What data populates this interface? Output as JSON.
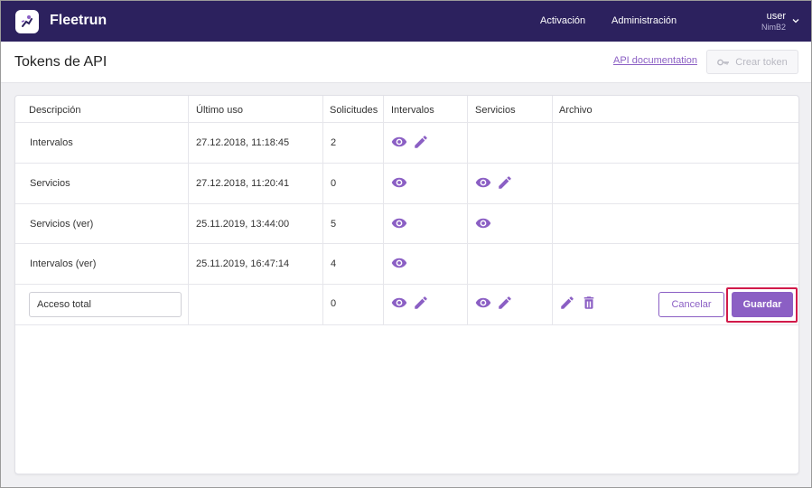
{
  "app": {
    "brand": "Fleetrun",
    "nav": [
      "Activación",
      "Administración"
    ],
    "user": {
      "name": "user",
      "org": "NimB2"
    }
  },
  "page": {
    "title": "Tokens de API",
    "api_doc_link": "API documentation",
    "create_token_label": "Crear token"
  },
  "table": {
    "columns": [
      "Descripción",
      "Último uso",
      "Solicitudes",
      "Intervalos",
      "Servicios",
      "Archivo"
    ],
    "rows": [
      {
        "description": "Intervalos",
        "last_use": "27.12.2018, 11:18:45",
        "requests": "2",
        "intervals": [
          "view",
          "edit"
        ],
        "services": [],
        "archive": []
      },
      {
        "description": "Servicios",
        "last_use": "27.12.2018, 11:20:41",
        "requests": "0",
        "intervals": [
          "view"
        ],
        "services": [
          "view",
          "edit"
        ],
        "archive": []
      },
      {
        "description": "Servicios (ver)",
        "last_use": "25.11.2019, 13:44:00",
        "requests": "5",
        "intervals": [
          "view"
        ],
        "services": [
          "view"
        ],
        "archive": []
      },
      {
        "description": "Intervalos (ver)",
        "last_use": "25.11.2019, 16:47:14",
        "requests": "4",
        "intervals": [
          "view"
        ],
        "services": [],
        "archive": []
      }
    ],
    "edit_row": {
      "description_value": "Acceso total",
      "requests": "0",
      "cancel_label": "Cancelar",
      "save_label": "Guardar"
    }
  },
  "colors": {
    "topbar": "#2c215e",
    "accent": "#8b5fc4",
    "highlight": "#d11a4a"
  }
}
